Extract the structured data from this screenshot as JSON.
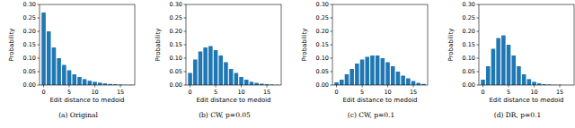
{
  "chart_data": [
    {
      "type": "bar",
      "title": "(a) Original",
      "x_label": "Edit distance to medoid",
      "y_label": "Probability",
      "color": "#1f77b4",
      "grid": false,
      "x": [
        0,
        1,
        2,
        3,
        4,
        5,
        6,
        7,
        8,
        9,
        10,
        11,
        12,
        13,
        14,
        15,
        16,
        17
      ],
      "values": [
        0.27,
        0.2,
        0.14,
        0.1,
        0.075,
        0.055,
        0.04,
        0.03,
        0.022,
        0.016,
        0.012,
        0.009,
        0.006,
        0.004,
        0.003,
        0.002,
        0.001,
        0.001
      ],
      "xlim": [
        -0.8,
        17.8
      ],
      "xticks": [
        0,
        5,
        10,
        15
      ],
      "ylim": [
        0,
        0.3
      ],
      "yticks": [
        {
          "value": 0,
          "label": "0.00"
        },
        {
          "value": 0.05,
          "label": "0.05"
        },
        {
          "value": 0.1,
          "label": "0.10"
        },
        {
          "value": 0.15,
          "label": "0.15"
        },
        {
          "value": 0.2,
          "label": "0.20"
        },
        {
          "value": 0.25,
          "label": "0.25"
        },
        {
          "value": 0.3,
          "label": "0.30"
        }
      ]
    },
    {
      "type": "bar",
      "title": "(b) CW, p=0.05",
      "x_label": "Edit distance to medoid",
      "y_label": "Probability",
      "color": "#1f77b4",
      "grid": false,
      "x": [
        0,
        1,
        2,
        3,
        4,
        5,
        6,
        7,
        8,
        9,
        10,
        11,
        12,
        13,
        14,
        15,
        16,
        17
      ],
      "values": [
        0.045,
        0.095,
        0.125,
        0.14,
        0.145,
        0.13,
        0.11,
        0.085,
        0.06,
        0.045,
        0.03,
        0.02,
        0.012,
        0.008,
        0.005,
        0.003,
        0.002,
        0.001
      ],
      "xlim": [
        -0.8,
        17.8
      ],
      "xticks": [
        0,
        5,
        10,
        15
      ],
      "ylim": [
        0,
        0.3
      ],
      "yticks": [
        {
          "value": 0,
          "label": "0.00"
        },
        {
          "value": 0.05,
          "label": "0.05"
        },
        {
          "value": 0.1,
          "label": "0.10"
        },
        {
          "value": 0.15,
          "label": "0.15"
        },
        {
          "value": 0.2,
          "label": "0.20"
        },
        {
          "value": 0.25,
          "label": "0.25"
        },
        {
          "value": 0.3,
          "label": "0.30"
        }
      ]
    },
    {
      "type": "bar",
      "title": "(c) CW, p=0.1",
      "x_label": "Edit distance to medoid",
      "y_label": "Probability",
      "color": "#1f77b4",
      "grid": false,
      "x": [
        0,
        1,
        2,
        3,
        4,
        5,
        6,
        7,
        8,
        9,
        10,
        11,
        12,
        13,
        14,
        15,
        16,
        17
      ],
      "values": [
        0.01,
        0.02,
        0.04,
        0.06,
        0.08,
        0.095,
        0.105,
        0.11,
        0.11,
        0.1,
        0.085,
        0.07,
        0.05,
        0.035,
        0.025,
        0.015,
        0.008,
        0.004
      ],
      "xlim": [
        -0.8,
        17.8
      ],
      "xticks": [
        0,
        5,
        10,
        15
      ],
      "ylim": [
        0,
        0.3
      ],
      "yticks": [
        {
          "value": 0,
          "label": "0.00"
        },
        {
          "value": 0.05,
          "label": "0.05"
        },
        {
          "value": 0.1,
          "label": "0.10"
        },
        {
          "value": 0.15,
          "label": "0.15"
        },
        {
          "value": 0.2,
          "label": "0.20"
        },
        {
          "value": 0.25,
          "label": "0.25"
        },
        {
          "value": 0.3,
          "label": "0.30"
        }
      ]
    },
    {
      "type": "bar",
      "title": "(d) DR, p=0.1",
      "x_label": "Edit distance to medoid",
      "y_label": "Probability",
      "color": "#1f77b4",
      "grid": false,
      "x": [
        0,
        1,
        2,
        3,
        4,
        5,
        6,
        7,
        8,
        9,
        10,
        11,
        12,
        13,
        14,
        15,
        16,
        17
      ],
      "values": [
        0.02,
        0.07,
        0.135,
        0.175,
        0.185,
        0.15,
        0.11,
        0.07,
        0.04,
        0.022,
        0.012,
        0.006,
        0.003,
        0.002,
        0.001,
        0.001,
        0,
        0
      ],
      "xlim": [
        -0.8,
        17.8
      ],
      "xticks": [
        0,
        5,
        10,
        15
      ],
      "ylim": [
        0,
        0.3
      ],
      "yticks": [
        {
          "value": 0,
          "label": "0.00"
        },
        {
          "value": 0.05,
          "label": "0.05"
        },
        {
          "value": 0.1,
          "label": "0.10"
        },
        {
          "value": 0.15,
          "label": "0.15"
        },
        {
          "value": 0.2,
          "label": "0.20"
        },
        {
          "value": 0.25,
          "label": "0.25"
        },
        {
          "value": 0.3,
          "label": "0.30"
        }
      ]
    }
  ]
}
